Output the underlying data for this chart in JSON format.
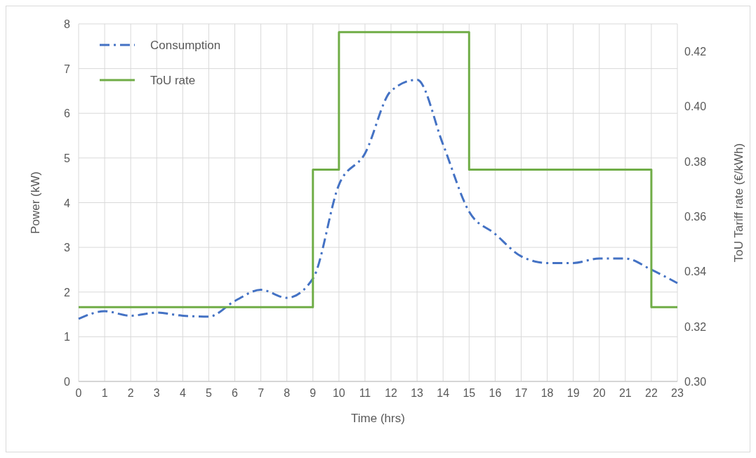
{
  "chart_data": {
    "type": "line",
    "xlabel": "Time (hrs)",
    "ylabel": "Power (kW)",
    "y2label": "ToU Tariff rate (€/kWh)",
    "x": [
      0,
      1,
      2,
      3,
      4,
      5,
      6,
      7,
      8,
      9,
      10,
      11,
      12,
      13,
      14,
      15,
      16,
      17,
      18,
      19,
      20,
      21,
      22,
      23
    ],
    "xlim": [
      0,
      23
    ],
    "xticks": [
      0,
      1,
      2,
      3,
      4,
      5,
      6,
      7,
      8,
      9,
      10,
      11,
      12,
      13,
      14,
      15,
      16,
      17,
      18,
      19,
      20,
      21,
      22,
      23
    ],
    "ylim": [
      0,
      8
    ],
    "yticks": [
      0,
      1,
      2,
      3,
      4,
      5,
      6,
      7,
      8
    ],
    "y2lim": [
      0.3,
      0.43
    ],
    "y2ticks": [
      {
        "value": 0.3,
        "label": "0.30"
      },
      {
        "value": 0.32,
        "label": "0.32"
      },
      {
        "value": 0.34,
        "label": "0.34"
      },
      {
        "value": 0.36,
        "label": "0.36"
      },
      {
        "value": 0.38,
        "label": "0.38"
      },
      {
        "value": 0.4,
        "label": "0.40"
      },
      {
        "value": 0.42,
        "label": "0.42"
      }
    ],
    "grid": true,
    "legend": "top left",
    "marker": "none",
    "series": [
      {
        "name": "Consumption",
        "color": "#4472c4",
        "line_style": "dashed",
        "values": [
          1.4,
          1.57,
          1.47,
          1.54,
          1.47,
          1.45,
          1.8,
          2.05,
          1.87,
          2.3,
          4.4,
          5.1,
          6.5,
          6.75,
          5.3,
          3.8,
          3.3,
          2.8,
          2.65,
          2.65,
          2.75,
          2.75,
          2.5,
          2.2
        ]
      },
      {
        "name": "ToU rate",
        "type": "step",
        "axis": "y2",
        "color": "#70ad47",
        "line_style": "solid",
        "values": [
          0.327,
          0.327,
          0.327,
          0.327,
          0.327,
          0.327,
          0.327,
          0.327,
          0.327,
          0.377,
          0.427,
          0.427,
          0.427,
          0.427,
          0.427,
          0.377,
          0.377,
          0.377,
          0.377,
          0.377,
          0.377,
          0.377,
          0.327,
          0.327
        ]
      }
    ]
  }
}
